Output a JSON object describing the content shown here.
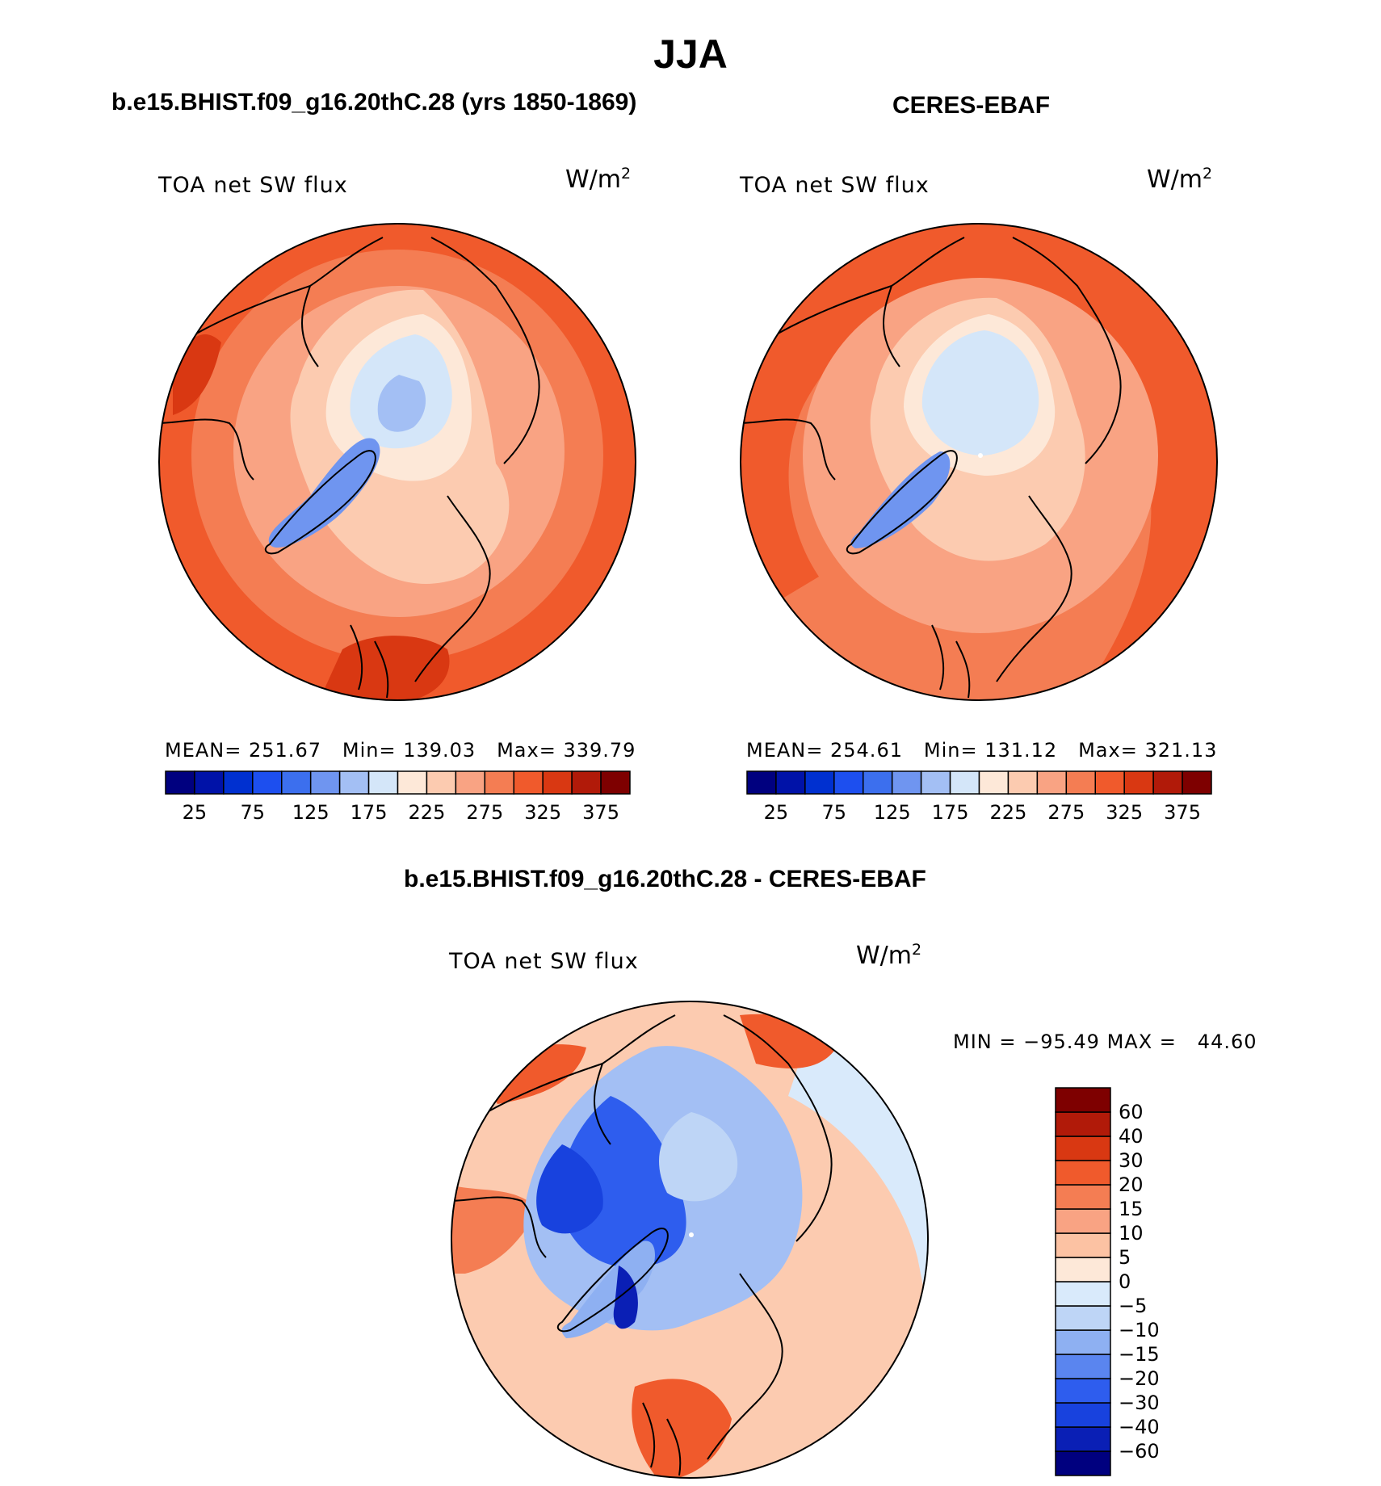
{
  "title": "JJA",
  "panels": [
    {
      "subtitle": "b.e15.BHIST.f09_g16.20thC.28 (yrs 1850-1869)",
      "variable": "TOA net SW flux",
      "units_base": "W/m",
      "units_exp": "2",
      "stats": {
        "mean_label": "MEAN=",
        "mean": "251.67",
        "min_label": "Min=",
        "min": "139.03",
        "max_label": "Max=",
        "max": "339.79"
      }
    },
    {
      "subtitle": "CERES-EBAF",
      "variable": "TOA net SW flux",
      "units_base": "W/m",
      "units_exp": "2",
      "stats": {
        "mean_label": "MEAN=",
        "mean": "254.61",
        "min_label": "Min=",
        "min": "131.12",
        "max_label": "Max=",
        "max": "321.13"
      }
    },
    {
      "subtitle": "b.e15.BHIST.f09_g16.20thC.28 - CERES-EBAF",
      "variable": "TOA net SW flux",
      "units_base": "W/m",
      "units_exp": "2",
      "stats": {
        "min_label": "MIN =",
        "min": "−95.49",
        "max_label": "MAX =",
        "max": "44.60"
      }
    }
  ],
  "colorbar_abs": {
    "colors": [
      "#00007f",
      "#0012a8",
      "#0030d0",
      "#1d4fef",
      "#3c6fee",
      "#6f95f0",
      "#a3bff4",
      "#d4e6f9",
      "#fde8d8",
      "#fccbb0",
      "#f9a383",
      "#f47d53",
      "#f05a2c",
      "#d93812",
      "#b11a09",
      "#7e0000"
    ],
    "tick_labels": [
      "25",
      "75",
      "125",
      "175",
      "225",
      "275",
      "325",
      "375"
    ]
  },
  "colorbar_diff": {
    "colors": [
      "#00007f",
      "#0a1fb5",
      "#1842de",
      "#2e5dee",
      "#5a85ef",
      "#8eb0f2",
      "#bed5f6",
      "#d9eafb",
      "#fde8d8",
      "#fcc2a3",
      "#f9a383",
      "#f47d53",
      "#f05a2c",
      "#d93812",
      "#b11a09",
      "#7e0000"
    ],
    "tick_labels": [
      "−60",
      "−40",
      "−30",
      "−20",
      "−15",
      "−10",
      "−5",
      "0",
      "5",
      "10",
      "15",
      "20",
      "30",
      "40",
      "60"
    ]
  }
}
